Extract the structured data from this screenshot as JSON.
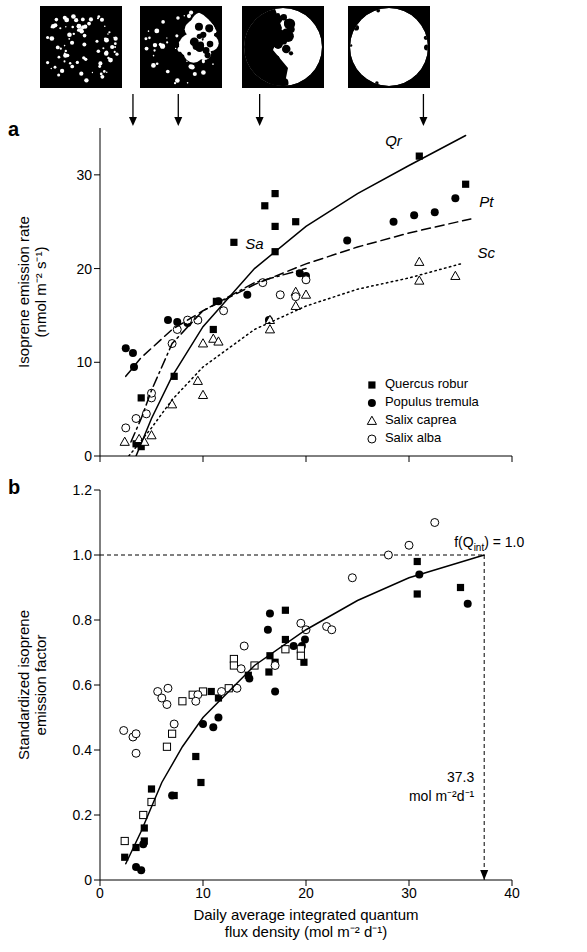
{
  "chart_data": [
    {
      "type": "scatter",
      "panel": "a",
      "ylabel": "Isoprene emission rate (nmol m⁻² s⁻¹)",
      "xlim": [
        0,
        40
      ],
      "xticks": [
        0,
        10,
        20,
        30,
        40
      ],
      "ylim": [
        0,
        35
      ],
      "yticks": [
        0,
        10,
        20,
        30
      ],
      "tick_labels": "y",
      "legend": "lower right",
      "arrows_x": [
        3.2,
        7.6,
        15.5,
        31.4
      ],
      "series": [
        {
          "name": "Quercus robur",
          "color": "#000000",
          "marker": "filled_square",
          "x": [
            3.5,
            4.0,
            4.0,
            7.2,
            11.0,
            11.3,
            13.0,
            16.0,
            17.0,
            17.0,
            17.0,
            19.0,
            31.0,
            35.5
          ],
          "values": [
            1.3,
            1.0,
            6.2,
            8.5,
            13.5,
            16.5,
            22.8,
            26.7,
            28.0,
            24.5,
            21.8,
            25.0,
            32.0,
            29.0
          ]
        },
        {
          "name": "Populus tremula",
          "color": "#000000",
          "marker": "filled_circle",
          "x": [
            2.5,
            3.2,
            3.3,
            6.6,
            7.5,
            8.5,
            9.5,
            11.5,
            14.3,
            16.4,
            19.4,
            20.0,
            24.0,
            28.5,
            30.5,
            32.5,
            34.5
          ],
          "values": [
            11.5,
            11.0,
            9.5,
            14.5,
            14.3,
            14.2,
            14.5,
            16.5,
            17.2,
            14.5,
            19.5,
            19.2,
            23.0,
            25.0,
            25.7,
            26.0,
            27.5
          ]
        },
        {
          "name": "Salix caprea",
          "color": "#000000",
          "marker": "open_triangle",
          "x": [
            2.4,
            3.8,
            4.3,
            5.0,
            7.0,
            9.5,
            10.0,
            10.0,
            11.0,
            11.5,
            16.5,
            16.5,
            19.0,
            19.0,
            20.0,
            31.0,
            31.0,
            34.5
          ],
          "values": [
            1.5,
            1.8,
            1.5,
            2.2,
            5.5,
            8.0,
            6.5,
            12.0,
            12.5,
            12.2,
            13.5,
            14.5,
            16.0,
            17.5,
            17.2,
            20.7,
            18.7,
            19.2
          ]
        },
        {
          "name": "Salix alba",
          "color": "#000000",
          "marker": "open_circle",
          "x": [
            2.5,
            3.5,
            4.5,
            5.0,
            5.0,
            7.0,
            7.5,
            8.5,
            9.5,
            12.0,
            15.8,
            17.5,
            19.0,
            20.0
          ],
          "values": [
            3.0,
            4.0,
            4.5,
            6.2,
            6.7,
            12.0,
            13.5,
            14.5,
            14.5,
            15.5,
            18.5,
            17.2,
            17.0,
            18.8
          ]
        },
        {
          "type": "line",
          "color": "#000000",
          "line_style": "solid",
          "x": [
            3.5,
            5,
            7,
            10,
            15,
            20,
            25,
            30,
            35.5
          ],
          "values": [
            0,
            4,
            8.5,
            13.8,
            20,
            24.5,
            28,
            31,
            34.2
          ]
        },
        {
          "type": "line",
          "color": "#000000",
          "line_style": "dashed",
          "x": [
            2.5,
            4,
            7,
            10,
            15,
            20,
            25,
            30,
            36
          ],
          "values": [
            8.5,
            10.5,
            13.5,
            15.5,
            18.3,
            20.5,
            22.3,
            23.8,
            25.3
          ]
        },
        {
          "type": "line",
          "color": "#000000",
          "line_style": "dashdot",
          "x": [
            3,
            4,
            5,
            7,
            10,
            15,
            20
          ],
          "values": [
            1.5,
            4,
            7,
            12,
            15.5,
            18.5,
            20
          ]
        },
        {
          "type": "line",
          "color": "#000000",
          "line_style": "dotted",
          "x": [
            2.8,
            5,
            7,
            10,
            15,
            20,
            25,
            30,
            35
          ],
          "values": [
            0,
            3,
            6,
            9.5,
            13.5,
            16,
            17.8,
            19,
            20.5
          ]
        }
      ],
      "annotations": [
        {
          "text": "Qr",
          "x": 28.5,
          "y": 33.5
        },
        {
          "text": "Sa",
          "x": 15,
          "y": 22.5
        },
        {
          "text": "Pt",
          "x": 37.5,
          "y": 27
        },
        {
          "text": "Sc",
          "x": 37.5,
          "y": 21.5
        }
      ]
    },
    {
      "type": "scatter",
      "panel": "b",
      "xlabel": "Daily average integrated quantum flux density (mol m⁻² d⁻¹)",
      "ylabel": "Standardized isoprene emission factor",
      "xlim": [
        0,
        40
      ],
      "xticks": [
        0,
        10,
        20,
        30,
        40
      ],
      "ylim": [
        0,
        1.2
      ],
      "yticks": [
        0,
        0.2,
        0.4,
        0.6,
        0.8,
        {
          "value": 1,
          "label": "1.0"
        },
        1.2
      ],
      "series": [
        {
          "color": "#000000",
          "marker": "filled_square",
          "x": [
            2.4,
            3.5,
            4.3,
            4.3,
            5.0,
            7.2,
            9.3,
            9.8,
            10.8,
            11.5,
            14.4,
            16.4,
            16.5,
            17.0,
            18.0,
            18.0,
            19.8,
            30.8,
            30.8,
            35.0
          ],
          "values": [
            0.07,
            0.1,
            0.16,
            0.12,
            0.28,
            0.26,
            0.38,
            0.3,
            0.58,
            0.56,
            0.63,
            0.64,
            0.69,
            0.67,
            0.83,
            0.74,
            0.67,
            0.98,
            0.88,
            0.9
          ]
        },
        {
          "color": "#000000",
          "marker": "filled_circle",
          "x": [
            3.5,
            4.0,
            4.2,
            7.0,
            10.0,
            11.0,
            11.5,
            14.5,
            16.3,
            16.5,
            17.0,
            18.8,
            19.6,
            19.9,
            31.0,
            35.7
          ],
          "values": [
            0.04,
            0.03,
            0.11,
            0.26,
            0.48,
            0.47,
            0.5,
            0.62,
            0.77,
            0.82,
            0.58,
            0.72,
            0.72,
            0.74,
            0.94,
            0.85
          ]
        },
        {
          "color": "#000000",
          "marker": "open_square",
          "x": [
            2.4,
            4.2,
            5.0,
            6.5,
            7.0,
            8.0,
            9.0,
            10.0,
            12.5,
            13.0,
            13.0,
            15.0,
            18.0,
            19.5,
            19.5
          ],
          "values": [
            0.12,
            0.2,
            0.24,
            0.41,
            0.45,
            0.55,
            0.57,
            0.58,
            0.59,
            0.68,
            0.66,
            0.66,
            0.71,
            0.71,
            0.69
          ]
        },
        {
          "color": "#000000",
          "marker": "open_circle",
          "x": [
            2.3,
            3.2,
            3.5,
            3.5,
            5.6,
            6.0,
            6.6,
            6.5,
            7.2,
            9.5,
            9.3,
            11.8,
            13.3,
            13.7,
            14.0,
            17.0,
            19.5,
            20.0,
            22.0,
            22.5,
            24.5,
            28.0,
            30.0,
            32.5
          ],
          "values": [
            0.46,
            0.44,
            0.39,
            0.45,
            0.58,
            0.56,
            0.59,
            0.54,
            0.48,
            0.57,
            0.55,
            0.58,
            0.59,
            0.65,
            0.72,
            0.66,
            0.79,
            0.77,
            0.78,
            0.77,
            0.93,
            1.0,
            1.03,
            1.1
          ]
        },
        {
          "type": "line",
          "color": "#000000",
          "line_style": "solid",
          "x": [
            2.5,
            4,
            6,
            8,
            10,
            15,
            20,
            25,
            30,
            37.3
          ],
          "values": [
            0.05,
            0.15,
            0.3,
            0.41,
            0.5,
            0.66,
            0.77,
            0.86,
            0.93,
            1.0
          ]
        }
      ],
      "reference": {
        "x": 37.3,
        "y": 1.0,
        "label": "f(Qint) = 1.0",
        "label_sub": "int",
        "x_unit": "mol m⁻²d⁻¹"
      }
    }
  ]
}
